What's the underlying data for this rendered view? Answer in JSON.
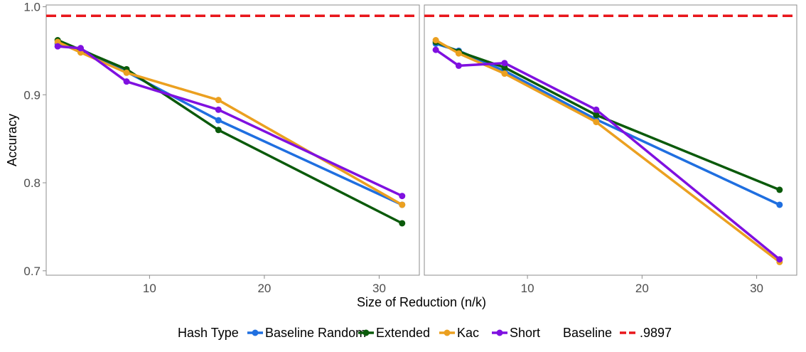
{
  "chart_data": {
    "type": "line",
    "xlabel": "Size of Reduction (n/k)",
    "ylabel": "Accuracy",
    "xlim": [
      1,
      33.5
    ],
    "ylim": [
      0.695,
      1.002
    ],
    "xticks": [
      10,
      20,
      30
    ],
    "yticks": [
      0.7,
      0.8,
      0.9,
      1.0
    ],
    "ytick_labels": [
      "0.7",
      "0.8",
      "0.9",
      "1.0"
    ],
    "grid": false,
    "legend_position": "bottom",
    "legend": {
      "hash_title": "Hash Type",
      "baseline_title": "Baseline",
      "baseline_entry": ".9897"
    },
    "baseline": {
      "value": 0.9897,
      "color": "#e8161b",
      "style": "dashed"
    },
    "colors": {
      "Baseline Random": "#1f6fe0",
      "Extended": "#0b5a0b",
      "Kac": "#eba020",
      "Short": "#7f10e0"
    },
    "panels": [
      {
        "series": [
          {
            "name": "Baseline Random",
            "x": [
              2,
              4,
              8,
              16,
              32
            ],
            "y": [
              0.958,
              0.952,
              0.926,
              0.871,
              0.775
            ]
          },
          {
            "name": "Extended",
            "x": [
              2,
              4,
              8,
              16,
              32
            ],
            "y": [
              0.962,
              0.951,
              0.929,
              0.86,
              0.754
            ]
          },
          {
            "name": "Kac",
            "x": [
              2,
              4,
              8,
              16,
              32
            ],
            "y": [
              0.96,
              0.948,
              0.925,
              0.894,
              0.775
            ]
          },
          {
            "name": "Short",
            "x": [
              2,
              4,
              8,
              16,
              32
            ],
            "y": [
              0.955,
              0.953,
              0.915,
              0.883,
              0.785
            ]
          }
        ]
      },
      {
        "series": [
          {
            "name": "Baseline Random",
            "x": [
              2,
              4,
              8,
              16,
              32
            ],
            "y": [
              0.958,
              0.95,
              0.927,
              0.872,
              0.775
            ]
          },
          {
            "name": "Extended",
            "x": [
              2,
              4,
              8,
              16,
              32
            ],
            "y": [
              0.96,
              0.949,
              0.931,
              0.877,
              0.792
            ]
          },
          {
            "name": "Kac",
            "x": [
              2,
              4,
              8,
              16,
              32
            ],
            "y": [
              0.962,
              0.947,
              0.924,
              0.869,
              0.71
            ]
          },
          {
            "name": "Short",
            "x": [
              2,
              4,
              8,
              16,
              32
            ],
            "y": [
              0.951,
              0.933,
              0.936,
              0.883,
              0.713
            ]
          }
        ]
      }
    ]
  }
}
